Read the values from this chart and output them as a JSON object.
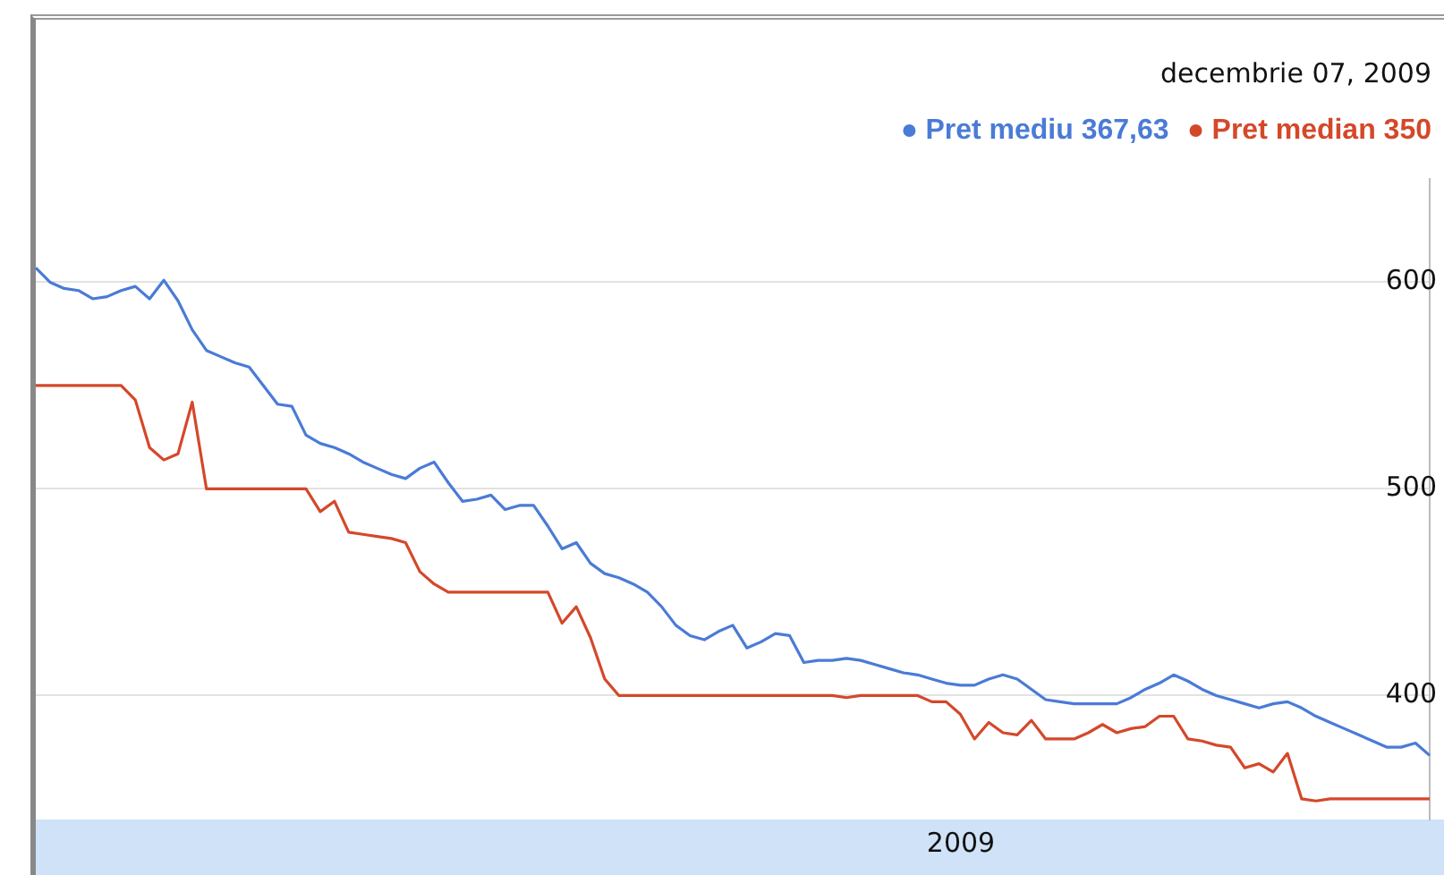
{
  "chart_data": {
    "type": "line",
    "annotations": [
      "decembrie 07, 2009",
      "2009"
    ],
    "categories": [
      null,
      null,
      null,
      null,
      null,
      null,
      null,
      null,
      null,
      null,
      null,
      null,
      null,
      null,
      null,
      null,
      null,
      null,
      null,
      null,
      null,
      null,
      null,
      null,
      null,
      null,
      null,
      null,
      null,
      null,
      null,
      null,
      null,
      null,
      null,
      null,
      null,
      null,
      null,
      null,
      null,
      null,
      null,
      null,
      null,
      null,
      null,
      null,
      null,
      null,
      null,
      null,
      null,
      null,
      null,
      null,
      null,
      null,
      null,
      null,
      null,
      null,
      null,
      null,
      null,
      null,
      null,
      null,
      null,
      null,
      null,
      null,
      null,
      null,
      null,
      null,
      null,
      null,
      null,
      null,
      null,
      null,
      null,
      null,
      null,
      null,
      null,
      null,
      null,
      null,
      null,
      null,
      null,
      null,
      null,
      null,
      null,
      null,
      null
    ],
    "ylim": [
      340,
      650
    ],
    "yticks": [
      400,
      500,
      600
    ],
    "grid": "y",
    "legend": "top right",
    "marker": "none",
    "line_style": "solid",
    "series": [
      {
        "name": "Pret mediu 367,63",
        "color": "#4a7bd6",
        "values": [
          607,
          600,
          597,
          596,
          592,
          593,
          596,
          598,
          592,
          601,
          591,
          577,
          567,
          564,
          561,
          559,
          550,
          541,
          540,
          526,
          522,
          520,
          517,
          513,
          510,
          507,
          505,
          510,
          513,
          503,
          494,
          495,
          497,
          490,
          492,
          492,
          482,
          471,
          474,
          464,
          459,
          457,
          454,
          450,
          443,
          434,
          429,
          427,
          431,
          434,
          423,
          426,
          430,
          429,
          416,
          417,
          417,
          418,
          417,
          415,
          413,
          411,
          410,
          408,
          406,
          405,
          405,
          408,
          410,
          408,
          403,
          398,
          397,
          396,
          396,
          396,
          396,
          399,
          403,
          406,
          410,
          407,
          403,
          400,
          398,
          396,
          394,
          396,
          397,
          394,
          390,
          387,
          384,
          381,
          378,
          375,
          375,
          377,
          371
        ]
      },
      {
        "name": "Pret median 350",
        "color": "#d4482a",
        "values": [
          550,
          550,
          550,
          550,
          550,
          550,
          550,
          543,
          520,
          514,
          517,
          542,
          500,
          500,
          500,
          500,
          500,
          500,
          500,
          500,
          489,
          494,
          479,
          478,
          477,
          476,
          474,
          460,
          454,
          450,
          450,
          450,
          450,
          450,
          450,
          450,
          450,
          435,
          443,
          428,
          408,
          400,
          400,
          400,
          400,
          400,
          400,
          400,
          400,
          400,
          400,
          400,
          400,
          400,
          400,
          400,
          400,
          399,
          400,
          400,
          400,
          400,
          400,
          397,
          397,
          391,
          379,
          387,
          382,
          381,
          388,
          379,
          379,
          379,
          382,
          386,
          382,
          384,
          385,
          390,
          390,
          379,
          378,
          376,
          375,
          365,
          367,
          363,
          372,
          350,
          349,
          350,
          350,
          350,
          350,
          350,
          350,
          350,
          350
        ]
      }
    ]
  }
}
